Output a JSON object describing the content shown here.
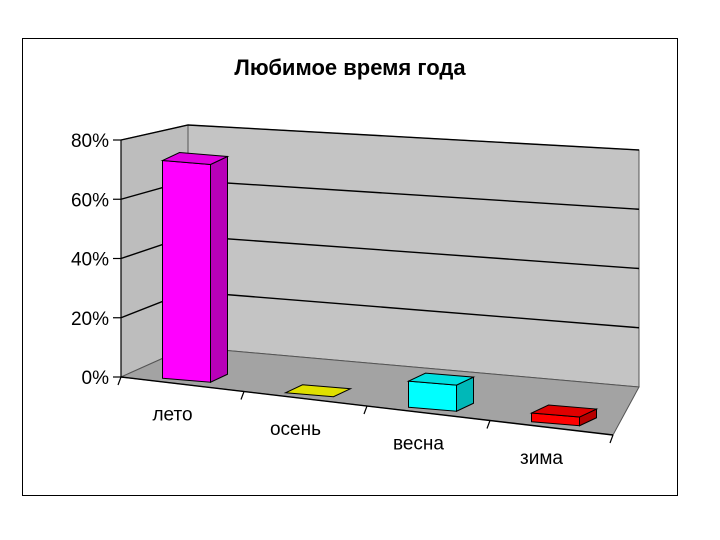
{
  "chart_data": {
    "type": "bar",
    "title": "Любимое время года",
    "categories": [
      "лето",
      "осень",
      "весна",
      "зима"
    ],
    "series": [
      {
        "values": [
          75,
          0,
          9,
          3
        ]
      }
    ],
    "colors": [
      "#ff00ff",
      "#ffff00",
      "#00ffff",
      "#ff0000"
    ],
    "ylim": [
      0,
      80
    ],
    "y_ticks": [
      "0%",
      "20%",
      "40%",
      "60%",
      "80%"
    ],
    "grid": true,
    "legend": "none",
    "style": "3d-column"
  }
}
